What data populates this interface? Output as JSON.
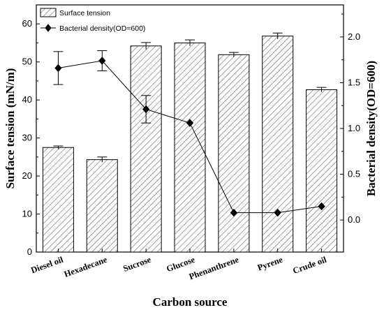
{
  "chart_data": {
    "type": "bar",
    "categories": [
      "Diesel oil",
      "Hexadecane",
      "Sucrose",
      "Glucose",
      "Phenanthrene",
      "Pyrene",
      "Crude oil"
    ],
    "xlabel": "Carbon source",
    "ylabel": "Surface tension (mN/m)",
    "ylabel_right": "Bacterial density(OD=600)",
    "ylim": [
      0,
      65
    ],
    "ylim_right": [
      -0.35,
      2.35
    ],
    "yticks": [
      "0",
      "10",
      "20",
      "30",
      "40",
      "50",
      "60"
    ],
    "yticks_right": [
      "0.0",
      "0.5",
      "1.0",
      "1.5",
      "2.0"
    ],
    "legend_position": "top-left",
    "grid": false,
    "series": [
      {
        "name": "Surface tension",
        "type": "bar",
        "axis": "left",
        "pattern": "diagonal-hatch",
        "values": [
          27.5,
          24.3,
          54.2,
          55.0,
          51.9,
          56.8,
          42.7
        ],
        "errors": [
          0.4,
          0.7,
          0.9,
          0.8,
          0.6,
          0.8,
          0.6
        ]
      },
      {
        "name": "Bacterial density(OD=600)",
        "type": "line",
        "axis": "right",
        "marker": "diamond",
        "values": [
          1.66,
          1.74,
          1.21,
          1.06,
          0.08,
          0.08,
          0.15
        ],
        "errors": [
          0.18,
          0.11,
          0.15,
          0,
          0,
          0,
          0
        ]
      }
    ]
  }
}
